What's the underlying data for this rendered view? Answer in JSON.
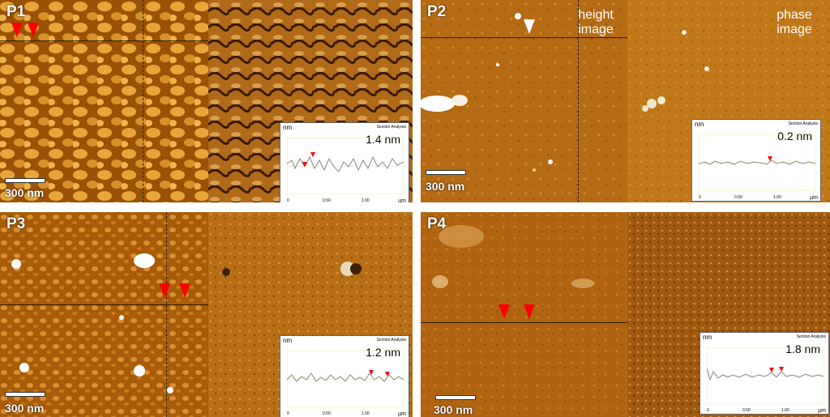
{
  "panels": [
    {
      "id": "P1",
      "label": "P1",
      "scale": "300 nm",
      "step": "1.4 nm"
    },
    {
      "id": "P2",
      "label": "P2",
      "scale": "300 nm",
      "step": "0.2 nm",
      "height_label": "height image",
      "phase_label": "phase image"
    },
    {
      "id": "P3",
      "label": "P3",
      "scale": "300 nm",
      "step": "1.2 nm"
    },
    {
      "id": "P4",
      "label": "P4",
      "scale": "300 nm",
      "step": "1.8 nm"
    }
  ],
  "inset": {
    "unit": "nm",
    "title": "Section Analysis",
    "xticks": [
      "0",
      "0.50",
      "1.00"
    ],
    "xunit": "µm"
  },
  "colors": {
    "marker": "#ff0000",
    "p1_height_bg": "#9a5204",
    "p1_height_fg": "#e8a538",
    "phase_base": "#a35a0c"
  }
}
